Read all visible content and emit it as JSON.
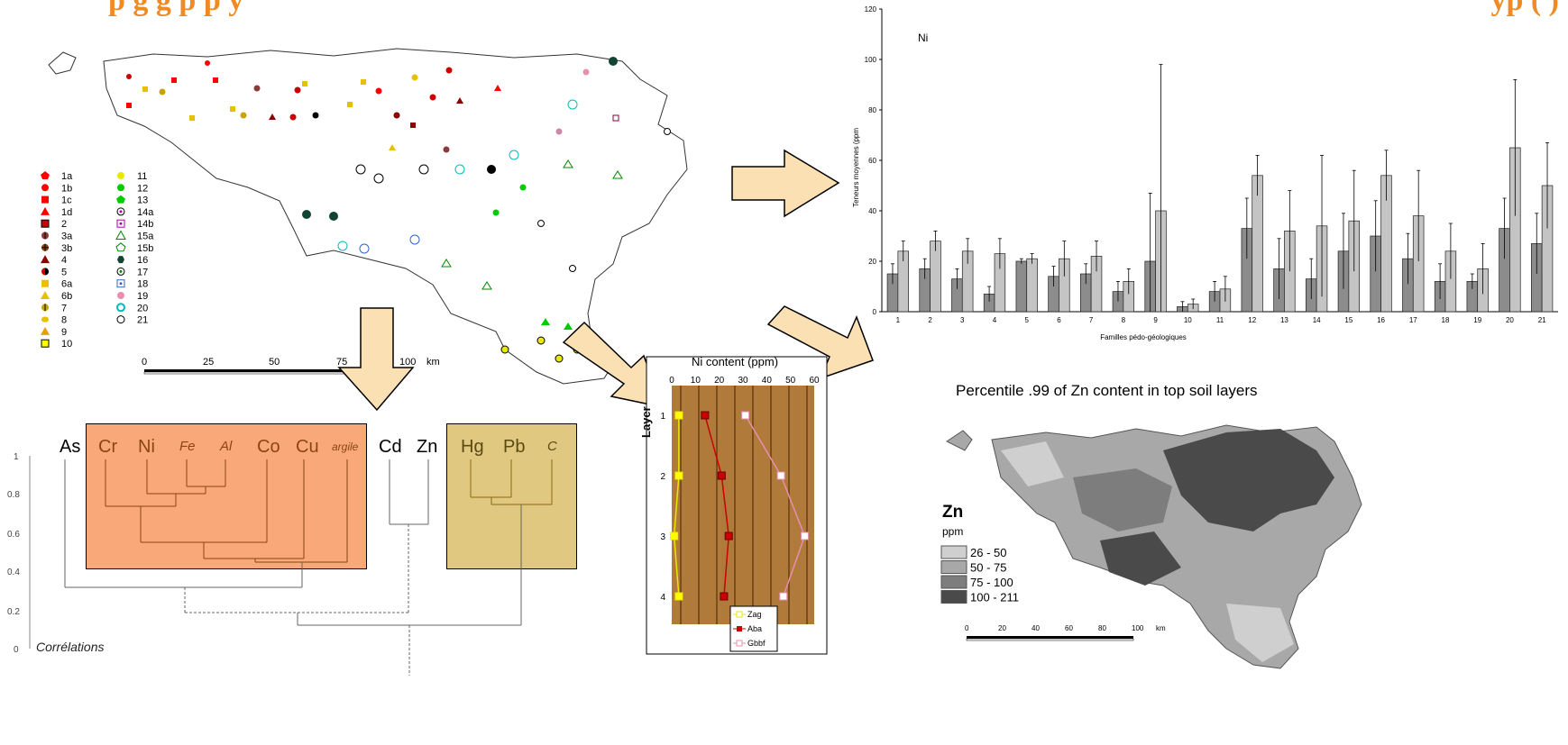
{
  "header": {
    "title_left": "p g       g p      p          y",
    "title_right": "yp (    )"
  },
  "map_legend": {
    "col1": [
      "1a",
      "1b",
      "1c",
      "1d",
      "2",
      "3a",
      "3b",
      "4",
      "5",
      "6a",
      "6b",
      "7",
      "8",
      "9",
      "10"
    ],
    "col2": [
      "11",
      "12",
      "13",
      "14a",
      "14b",
      "15a",
      "15b",
      "16",
      "17",
      "18",
      "19",
      "20",
      "21"
    ]
  },
  "map_scale": {
    "ticks": [
      "0",
      "25",
      "50",
      "75",
      "100"
    ],
    "unit": "km"
  },
  "dendrogram": {
    "labels": [
      "As",
      "Cr",
      "Ni",
      "Fe",
      "Al",
      "Co",
      "Cu",
      "argile",
      "Cd",
      "Zn",
      "Hg",
      "Pb",
      "C"
    ],
    "axis_ticks": [
      "1",
      "0.8",
      "0.6",
      "0.4",
      "0.2",
      "0"
    ],
    "axis_label": "Corrélations",
    "colors": {
      "group1": "#f9a87a",
      "group2": "#e0c880"
    }
  },
  "profile_chart": {
    "title": "Ni content (ppm)",
    "ylabel": "Layer",
    "legend": [
      "Zag",
      "Aba",
      "Gbbf"
    ]
  },
  "bar_chart": {
    "title": "Ni",
    "ylabel": "Teneurs moyennes (ppm",
    "xlabel": "Familles pédo-géologiques"
  },
  "zn_map": {
    "title": "Percentile .99 of Zn content in top soil layers",
    "legend_title": "Zn",
    "legend_unit": "ppm",
    "classes": [
      "26 - 50",
      "50 - 75",
      "75 - 100",
      "100 - 211"
    ],
    "class_colors": [
      "#cfcfcf",
      "#a8a8a8",
      "#7d7d7d",
      "#4a4a4a"
    ],
    "scale_ticks": [
      "0",
      "20",
      "40",
      "60",
      "80",
      "100"
    ],
    "scale_unit": "km"
  },
  "chart_data": [
    {
      "type": "bar",
      "title": "Ni",
      "xlabel": "Familles pédo-géologiques",
      "ylabel": "Teneurs moyennes (ppm",
      "ylim": [
        0,
        120
      ],
      "yticks": [
        "0",
        "20",
        "40",
        "60",
        "80",
        "100",
        "120"
      ],
      "categories": [
        "1",
        "2",
        "3",
        "4",
        "5",
        "6",
        "7",
        "8",
        "9",
        "10",
        "11",
        "12",
        "13",
        "14",
        "15",
        "16",
        "17",
        "18",
        "19",
        "20",
        "21"
      ],
      "series": [
        {
          "values": [
            15,
            17,
            13,
            7,
            20,
            14,
            15,
            8,
            20,
            2,
            8,
            33,
            17,
            13,
            24,
            30,
            21,
            12,
            12,
            33,
            27
          ],
          "err": [
            4,
            4,
            4,
            3,
            1,
            4,
            4,
            4,
            27,
            2,
            4,
            12,
            12,
            8,
            15,
            14,
            10,
            7,
            3,
            12,
            12
          ]
        },
        {
          "values": [
            24,
            28,
            24,
            23,
            21,
            21,
            22,
            12,
            40,
            3,
            9,
            54,
            32,
            34,
            36,
            54,
            38,
            24,
            17,
            65,
            50
          ],
          "err": [
            4,
            4,
            5,
            6,
            2,
            7,
            6,
            5,
            58,
            2,
            5,
            8,
            16,
            28,
            20,
            10,
            18,
            11,
            10,
            27,
            17
          ]
        }
      ]
    },
    {
      "type": "line",
      "title": "Ni content (ppm)",
      "ylabel": "Layer",
      "xlim": [
        0,
        60
      ],
      "xticks": [
        "0",
        "10",
        "20",
        "30",
        "40",
        "50",
        "60"
      ],
      "layers": [
        "1",
        "2",
        "3",
        "4"
      ],
      "series": [
        {
          "name": "Zag",
          "values": [
            3,
            3,
            1,
            3
          ],
          "color": "#e8e800"
        },
        {
          "name": "Aba",
          "values": [
            14,
            21,
            24,
            22
          ],
          "color": "#cc0000"
        },
        {
          "name": "Gbbf",
          "values": [
            31,
            46,
            56,
            47
          ],
          "color": "#e88fb0"
        }
      ]
    }
  ]
}
